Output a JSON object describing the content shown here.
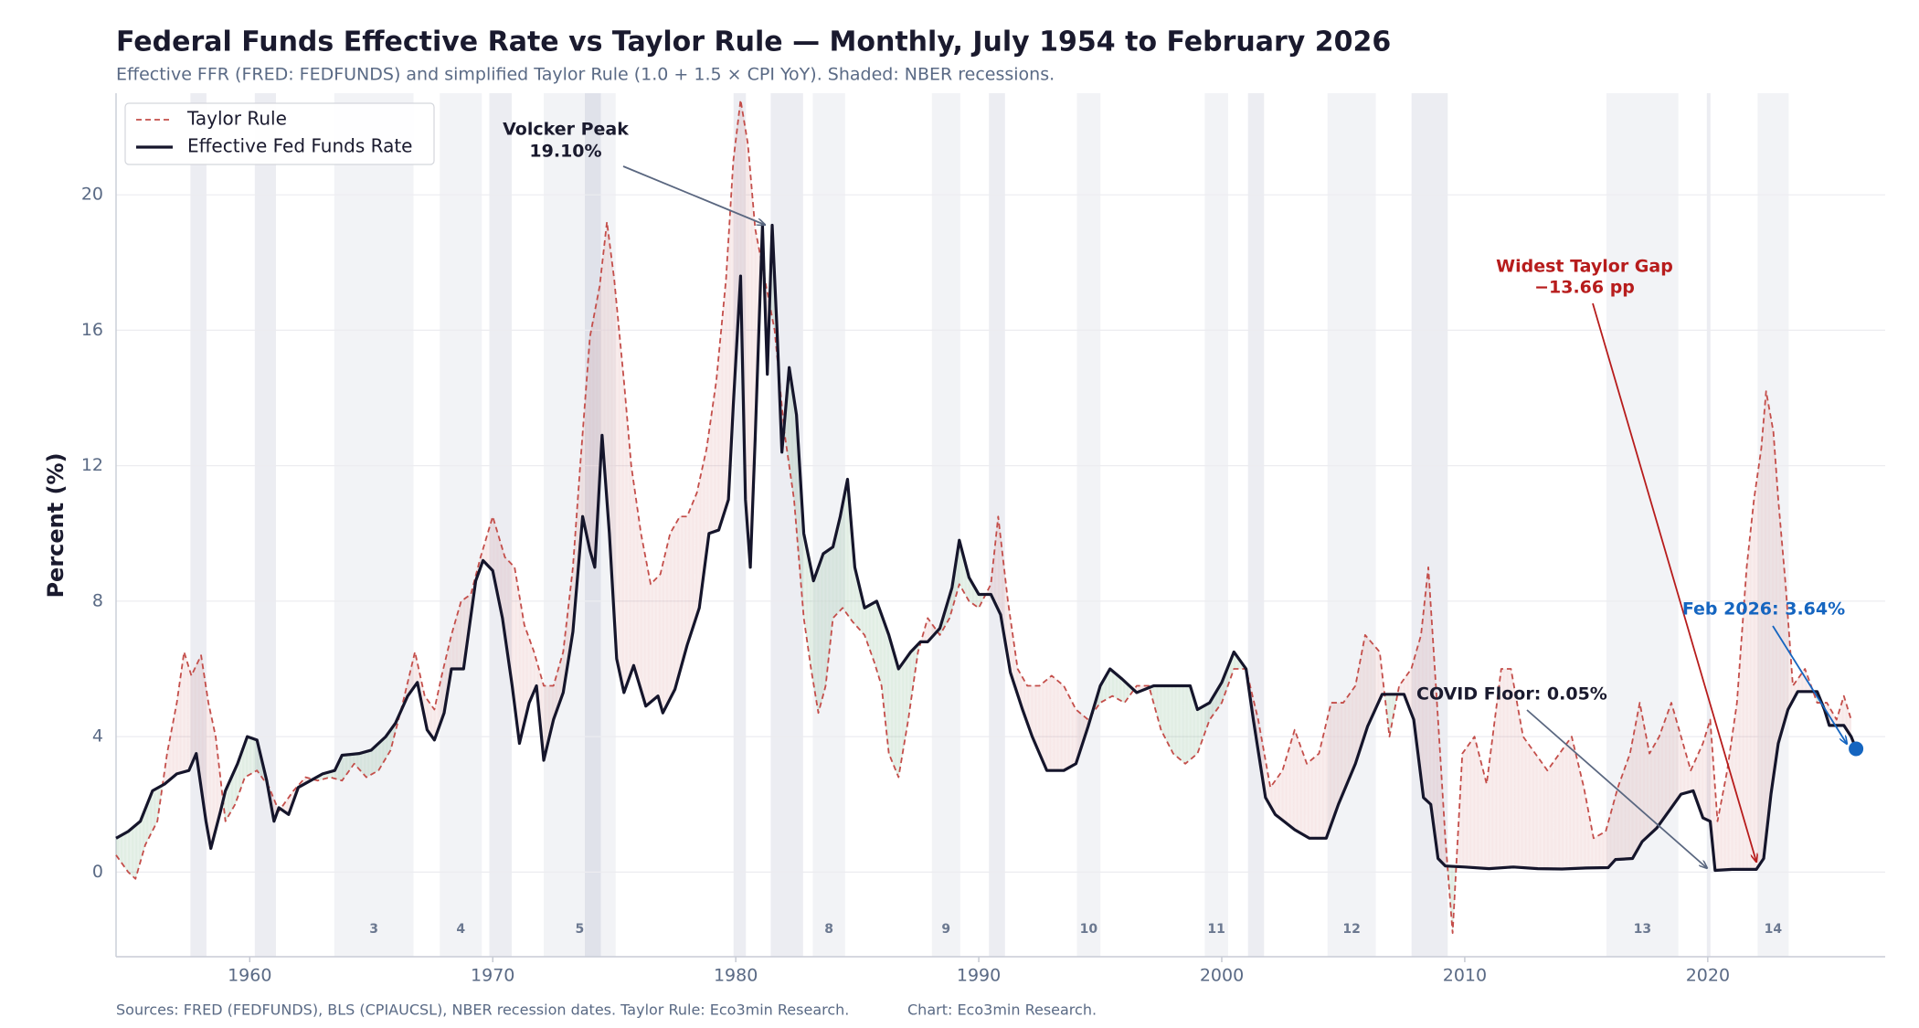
{
  "chart_data": {
    "type": "line",
    "title": "Federal Funds Effective Rate vs Taylor Rule — Monthly, July 1954 to February 2026",
    "subtitle": "Effective FFR (FRED: FEDFUNDS) and simplified Taylor Rule (1.0 + 1.5 × CPI YoY). Shaded: NBER recessions.",
    "ylabel": "Percent (%)",
    "source": "Sources: FRED (FEDFUNDS), BLS (CPIAUCSL), NBER recession dates. Taylor Rule: Eco3min Research.",
    "credit": "Chart: Eco3min Research.",
    "xlim": [
      1954.5,
      2027.3
    ],
    "xticks": [
      1960,
      1970,
      1980,
      1990,
      2000,
      2010,
      2020
    ],
    "ylim": [
      -2.5,
      23
    ],
    "yticks": [
      0,
      4,
      8,
      12,
      16,
      20
    ],
    "grid": true,
    "legend": "upper left",
    "series": [
      {
        "name": "Taylor Rule",
        "color": "#c44e4a",
        "dashed": true,
        "x": [
          1954.5,
          1955,
          1955.3,
          1955.7,
          1956.2,
          1956.6,
          1957,
          1957.3,
          1957.6,
          1958,
          1958.3,
          1958.6,
          1959,
          1959.4,
          1959.8,
          1960.3,
          1960.8,
          1961.2,
          1961.8,
          1962.3,
          1962.8,
          1963.3,
          1963.8,
          1964.3,
          1964.8,
          1965.3,
          1965.8,
          1966.3,
          1966.8,
          1967.2,
          1967.6,
          1967.9,
          1968.3,
          1968.7,
          1969.1,
          1969.5,
          1970,
          1970.5,
          1970.9,
          1971.3,
          1971.7,
          1972.1,
          1972.5,
          1972.9,
          1973.3,
          1973.6,
          1974,
          1974.4,
          1974.7,
          1975,
          1975.4,
          1975.7,
          1976.1,
          1976.5,
          1976.9,
          1977.3,
          1977.7,
          1978,
          1978.4,
          1978.8,
          1979.2,
          1979.6,
          1979.9,
          1980.2,
          1980.5,
          1980.8,
          1981.2,
          1981.6,
          1982,
          1982.4,
          1982.8,
          1983.1,
          1983.4,
          1983.7,
          1984,
          1984.4,
          1984.8,
          1985.3,
          1985.7,
          1986,
          1986.3,
          1986.7,
          1987.1,
          1987.5,
          1987.9,
          1988.4,
          1988.8,
          1989.2,
          1989.6,
          1990,
          1990.5,
          1990.8,
          1991.2,
          1991.6,
          1992,
          1992.5,
          1993,
          1993.5,
          1994,
          1994.5,
          1995,
          1995.5,
          1996,
          1996.5,
          1997,
          1997.5,
          1998,
          1998.5,
          1999,
          1999.5,
          2000,
          2000.5,
          2001,
          2001.5,
          2002,
          2002.5,
          2003,
          2003.5,
          2004,
          2004.5,
          2005,
          2005.5,
          2005.9,
          2006.5,
          2006.9,
          2007.3,
          2007.8,
          2008.2,
          2008.5,
          2008.9,
          2009.2,
          2009.5,
          2009.9,
          2010.4,
          2010.9,
          2011.5,
          2011.9,
          2012.4,
          2012.9,
          2013.4,
          2013.9,
          2014.4,
          2014.9,
          2015.3,
          2015.8,
          2016.3,
          2016.8,
          2017.2,
          2017.6,
          2018,
          2018.5,
          2018.9,
          2019.3,
          2019.8,
          2020.1,
          2020.4,
          2020.8,
          2021.2,
          2021.6,
          2021.9,
          2022.2,
          2022.4,
          2022.7,
          2022.9,
          2023.2,
          2023.5,
          2024,
          2024.5,
          2024.9,
          2025.3,
          2025.6,
          2025.9
        ],
        "values": [
          0.5,
          0.0,
          -0.2,
          0.8,
          1.5,
          3.5,
          5.0,
          6.5,
          5.8,
          6.4,
          5.0,
          4.0,
          1.5,
          2.0,
          2.8,
          3.0,
          2.5,
          1.8,
          2.4,
          2.8,
          2.7,
          2.8,
          2.7,
          3.2,
          2.8,
          3.0,
          3.6,
          5.0,
          6.5,
          5.2,
          4.8,
          5.8,
          7.0,
          8.0,
          8.2,
          9.3,
          10.5,
          9.3,
          9.0,
          7.3,
          6.5,
          5.5,
          5.5,
          6.5,
          9.0,
          12.0,
          15.8,
          17.3,
          19.2,
          17.5,
          14.5,
          12.0,
          10.0,
          8.5,
          8.8,
          10.0,
          10.5,
          10.5,
          11.2,
          12.5,
          14.5,
          17.5,
          21.0,
          22.8,
          21.5,
          19.0,
          17.5,
          16.0,
          13.0,
          11.0,
          7.5,
          6.0,
          4.7,
          5.5,
          7.5,
          7.8,
          7.4,
          7.0,
          6.2,
          5.5,
          3.5,
          2.8,
          4.5,
          6.5,
          7.5,
          7.0,
          7.5,
          8.5,
          8.0,
          7.8,
          8.5,
          10.5,
          8.0,
          6.0,
          5.5,
          5.5,
          5.8,
          5.5,
          4.8,
          4.5,
          5.0,
          5.2,
          5.0,
          5.5,
          5.5,
          4.2,
          3.5,
          3.2,
          3.5,
          4.5,
          5.0,
          6.0,
          6.0,
          4.5,
          2.5,
          3.0,
          4.2,
          3.2,
          3.5,
          5.0,
          5.0,
          5.5,
          7.0,
          6.5,
          4.0,
          5.5,
          6.0,
          7.0,
          9.0,
          4.5,
          1.0,
          -1.8,
          3.5,
          4.0,
          2.6,
          6.0,
          6.0,
          4.0,
          3.5,
          3.0,
          3.5,
          4.0,
          2.5,
          1.0,
          1.2,
          2.5,
          3.5,
          5.0,
          3.5,
          4.0,
          5.0,
          4.0,
          3.0,
          3.8,
          4.5,
          1.5,
          3.0,
          5.0,
          9.0,
          11.0,
          12.5,
          14.2,
          13.0,
          11.0,
          8.5,
          5.5,
          6.0,
          5.0,
          5.0,
          4.5,
          5.2,
          4.5
        ]
      },
      {
        "name": "Effective Fed Funds Rate",
        "color": "#15152b",
        "dashed": false,
        "x": [
          1954.5,
          1955,
          1955.5,
          1956,
          1956.5,
          1957,
          1957.5,
          1957.8,
          1958.2,
          1958.4,
          1958.8,
          1959,
          1959.5,
          1959.9,
          1960.3,
          1960.7,
          1961,
          1961.2,
          1961.6,
          1962,
          1962.5,
          1963,
          1963.5,
          1963.8,
          1964.5,
          1965,
          1965.6,
          1966,
          1966.5,
          1966.9,
          1967.3,
          1967.6,
          1968,
          1968.3,
          1968.8,
          1969.3,
          1969.6,
          1970,
          1970.4,
          1970.8,
          1971.1,
          1971.5,
          1971.8,
          1972.1,
          1972.5,
          1972.9,
          1973.3,
          1973.7,
          1974,
          1974.2,
          1974.5,
          1974.8,
          1975.1,
          1975.4,
          1975.8,
          1976.3,
          1976.8,
          1977,
          1977.5,
          1978,
          1978.5,
          1978.9,
          1979.3,
          1979.7,
          1979.9,
          1980.2,
          1980.4,
          1980.6,
          1980.8,
          1981.1,
          1981.3,
          1981.5,
          1981.7,
          1981.9,
          1982.2,
          1982.5,
          1982.8,
          1983.2,
          1983.6,
          1984,
          1984.3,
          1984.6,
          1984.9,
          1985.3,
          1985.8,
          1986.3,
          1986.7,
          1987.2,
          1987.6,
          1987.9,
          1988.4,
          1988.9,
          1989.2,
          1989.6,
          1990,
          1990.5,
          1990.9,
          1991.3,
          1991.8,
          1992.2,
          1992.8,
          1993.5,
          1994,
          1994.5,
          1995,
          1995.4,
          1995.9,
          1996.5,
          1997.2,
          1998,
          1998.7,
          1999,
          1999.5,
          2000,
          2000.5,
          2001,
          2001.3,
          2001.8,
          2002.2,
          2003,
          2003.6,
          2004.3,
          2004.8,
          2005.5,
          2006,
          2006.6,
          2007.5,
          2007.9,
          2008.3,
          2008.6,
          2008.9,
          2009.2,
          2010,
          2011,
          2012,
          2013,
          2014,
          2015,
          2015.9,
          2016.2,
          2016.9,
          2017.3,
          2017.9,
          2018.4,
          2018.9,
          2019.4,
          2019.8,
          2020.1,
          2020.3,
          2021,
          2022,
          2022.3,
          2022.6,
          2022.9,
          2023.3,
          2023.7,
          2024.5,
          2024.8,
          2025,
          2025.6,
          2025.9,
          2026.1
        ],
        "values": [
          1.0,
          1.2,
          1.5,
          2.4,
          2.6,
          2.9,
          3.0,
          3.5,
          1.5,
          0.7,
          1.8,
          2.4,
          3.2,
          4.0,
          3.9,
          2.7,
          1.5,
          1.9,
          1.7,
          2.5,
          2.7,
          2.9,
          3.0,
          3.45,
          3.5,
          3.6,
          4.0,
          4.4,
          5.2,
          5.6,
          4.2,
          3.9,
          4.7,
          6.0,
          6.0,
          8.6,
          9.2,
          8.9,
          7.5,
          5.5,
          3.8,
          5.0,
          5.5,
          3.3,
          4.5,
          5.3,
          7.1,
          10.5,
          9.5,
          9.0,
          12.9,
          10.0,
          6.3,
          5.3,
          6.1,
          4.9,
          5.2,
          4.7,
          5.4,
          6.7,
          7.8,
          10.0,
          10.1,
          11.0,
          13.8,
          17.6,
          11.0,
          9.0,
          12.8,
          19.1,
          14.7,
          19.1,
          16.0,
          12.4,
          14.9,
          13.5,
          10.0,
          8.6,
          9.4,
          9.6,
          10.5,
          11.6,
          9.0,
          7.8,
          8.0,
          7.0,
          6.0,
          6.5,
          6.8,
          6.8,
          7.2,
          8.4,
          9.8,
          8.7,
          8.2,
          8.2,
          7.6,
          5.9,
          4.8,
          4.0,
          3.0,
          3.0,
          3.2,
          4.3,
          5.5,
          6.0,
          5.7,
          5.3,
          5.5,
          5.5,
          5.5,
          4.8,
          5.0,
          5.6,
          6.5,
          6.0,
          4.5,
          2.2,
          1.7,
          1.25,
          1.0,
          1.0,
          2.0,
          3.2,
          4.3,
          5.25,
          5.25,
          4.5,
          2.2,
          2.0,
          0.4,
          0.18,
          0.15,
          0.1,
          0.15,
          0.1,
          0.09,
          0.12,
          0.13,
          0.37,
          0.4,
          0.9,
          1.3,
          1.8,
          2.3,
          2.4,
          1.6,
          1.5,
          0.05,
          0.08,
          0.08,
          0.4,
          2.3,
          3.8,
          4.8,
          5.33,
          5.33,
          4.8,
          4.33,
          4.33,
          4.0,
          3.64
        ]
      }
    ],
    "recessions": [
      [
        1957.56,
        1958.22
      ],
      [
        1960.21,
        1961.08
      ],
      [
        1969.86,
        1970.78
      ],
      [
        1973.79,
        1974.45
      ],
      [
        1979.91,
        1980.42
      ],
      [
        1981.44,
        1982.77
      ],
      [
        1990.42,
        1991.08
      ],
      [
        2001.08,
        2001.74
      ],
      [
        2007.81,
        2009.3
      ],
      [
        2019.96,
        2020.11
      ]
    ],
    "numbered_periods": [
      {
        "label": "3",
        "start": 1963.48,
        "end": 1966.74
      },
      {
        "label": "4",
        "start": 1967.82,
        "end": 1969.55
      },
      {
        "label": "5",
        "start": 1972.1,
        "end": 1975.06
      },
      {
        "label": "8",
        "start": 1983.17,
        "end": 1984.5
      },
      {
        "label": "9",
        "start": 1988.07,
        "end": 1989.24
      },
      {
        "label": "10",
        "start": 1994.04,
        "end": 1995.01
      },
      {
        "label": "11",
        "start": 1999.3,
        "end": 2000.26
      },
      {
        "label": "12",
        "start": 2004.35,
        "end": 2006.34
      },
      {
        "label": "13",
        "start": 2015.83,
        "end": 2018.79
      },
      {
        "label": "14",
        "start": 2022.05,
        "end": 2023.33
      }
    ],
    "annotations": [
      {
        "lines": [
          "Volcker Peak",
          "19.10%"
        ],
        "color": "#1a1a2e"
      },
      {
        "lines": [
          "Widest Taylor Gap",
          "−13.66 pp"
        ],
        "color": "#b71c1c"
      },
      {
        "lines": [
          "COVID Floor: 0.05%"
        ],
        "color": "#1a1a2e"
      },
      {
        "lines": [
          "Feb 2026: 3.64%"
        ],
        "color": "#1565c0"
      }
    ]
  }
}
